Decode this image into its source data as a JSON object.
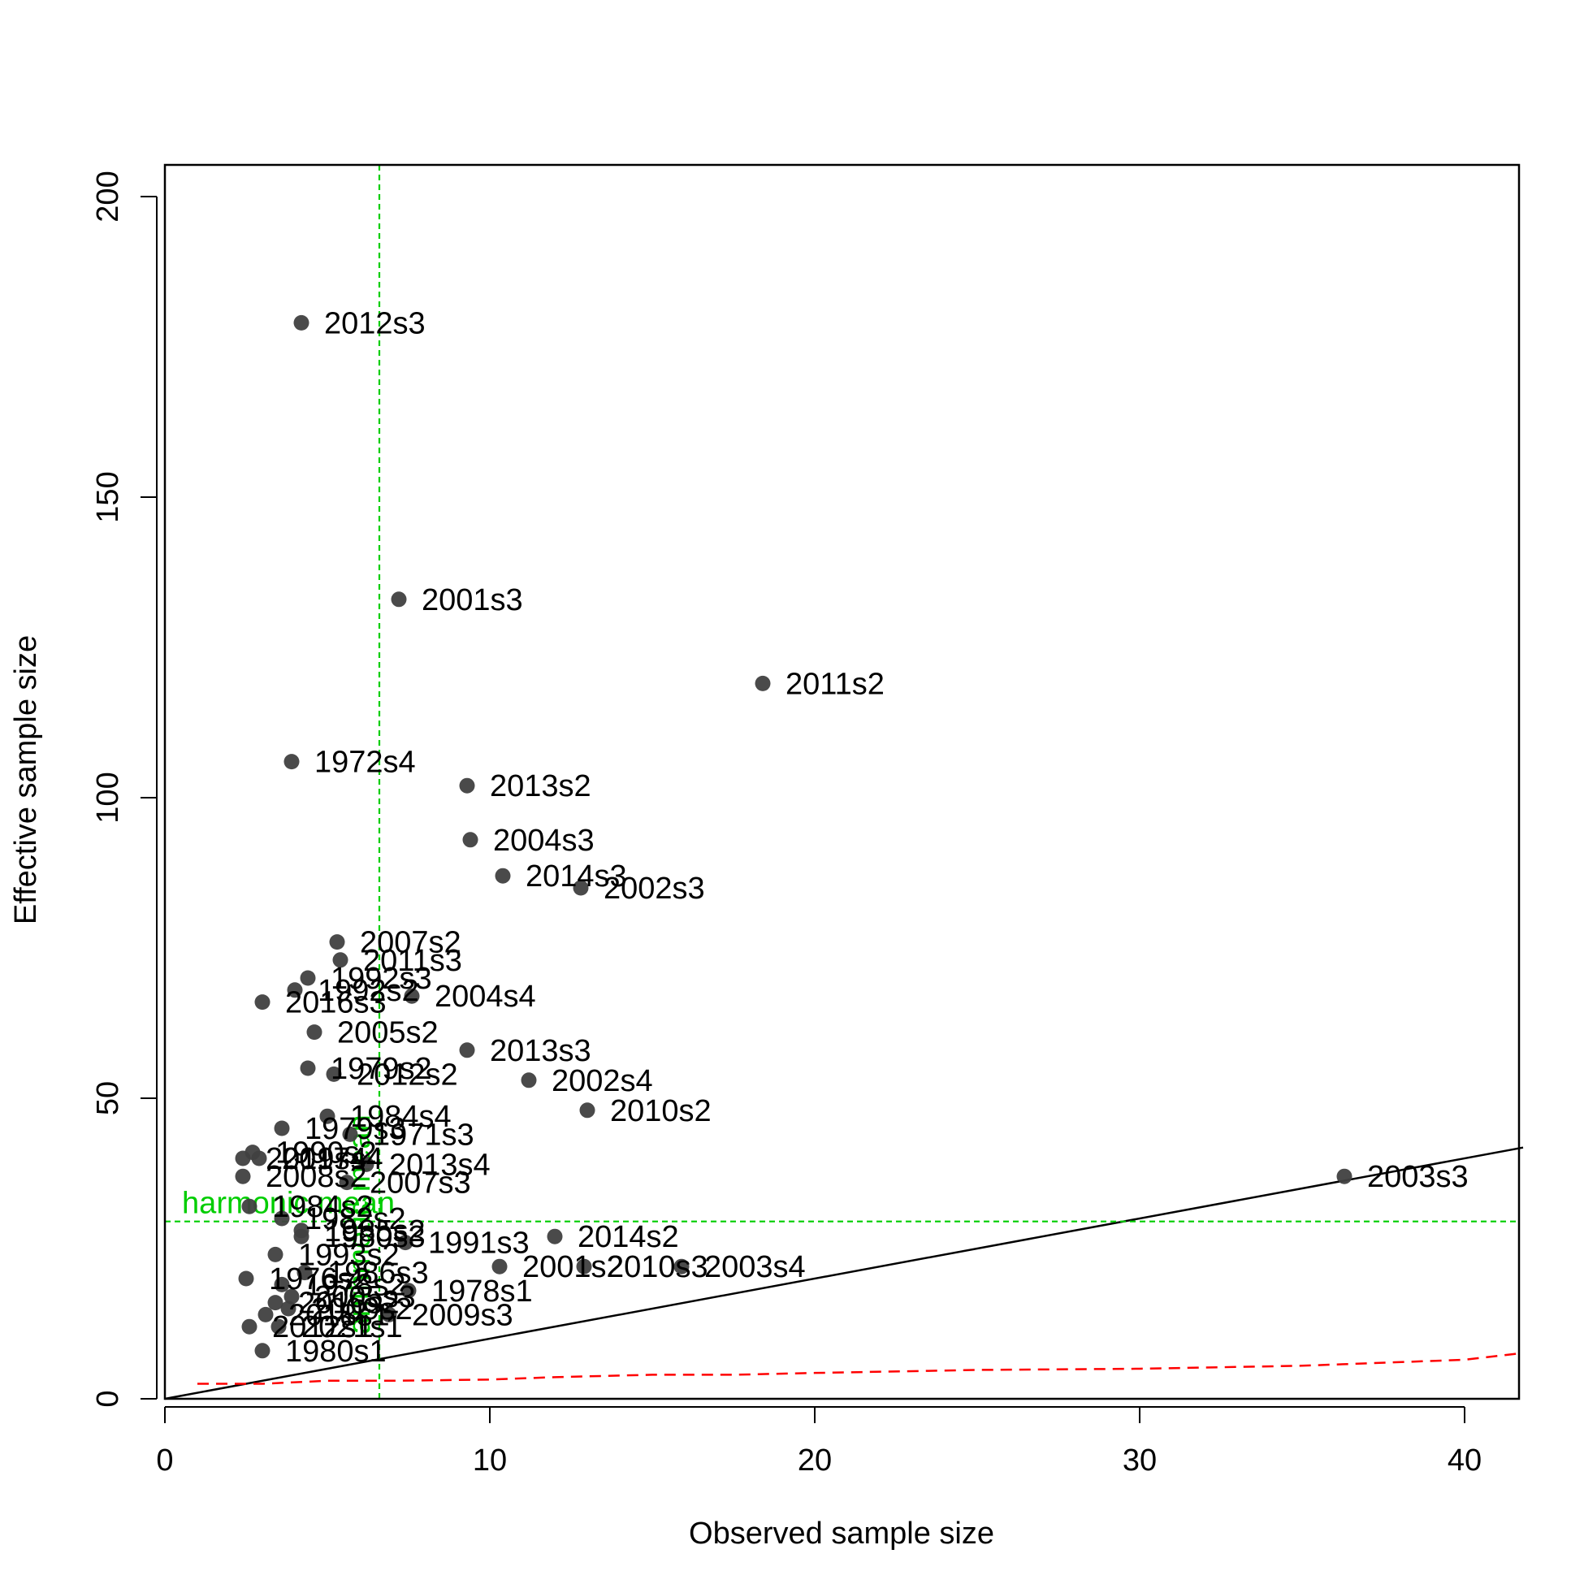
{
  "chart_data": {
    "type": "scatter",
    "title": "",
    "xlabel": "Observed sample size",
    "ylabel": "Effective sample size",
    "xlim": [
      0,
      41.8
    ],
    "ylim": [
      0,
      205
    ],
    "xticks": [
      "0",
      "10",
      "20",
      "30",
      "40"
    ],
    "yticks": [
      "0",
      "50",
      "100",
      "150",
      "200"
    ],
    "grid": false,
    "point_color": "#404040",
    "points": [
      {
        "x": 4.2,
        "y": 179,
        "label": "2012s3"
      },
      {
        "x": 7.2,
        "y": 133,
        "label": "2001s3"
      },
      {
        "x": 18.4,
        "y": 119,
        "label": "2011s2"
      },
      {
        "x": 3.9,
        "y": 106,
        "label": "1972s4"
      },
      {
        "x": 9.3,
        "y": 102,
        "label": "2013s2"
      },
      {
        "x": 9.4,
        "y": 93,
        "label": "2004s3"
      },
      {
        "x": 10.4,
        "y": 87,
        "label": "2014s3"
      },
      {
        "x": 12.8,
        "y": 85,
        "label": "2002s3"
      },
      {
        "x": 5.3,
        "y": 76,
        "label": "2007s2"
      },
      {
        "x": 5.4,
        "y": 73,
        "label": "2011s3"
      },
      {
        "x": 4.4,
        "y": 70,
        "label": "1992s3"
      },
      {
        "x": 4.0,
        "y": 68,
        "label": "1992s2"
      },
      {
        "x": 7.6,
        "y": 67,
        "label": "2004s4"
      },
      {
        "x": 3.0,
        "y": 66,
        "label": "2016s3"
      },
      {
        "x": 4.6,
        "y": 61,
        "label": "2005s2"
      },
      {
        "x": 9.3,
        "y": 58,
        "label": "2013s3"
      },
      {
        "x": 4.4,
        "y": 55,
        "label": "1979s2"
      },
      {
        "x": 5.2,
        "y": 54,
        "label": "2012s2"
      },
      {
        "x": 11.2,
        "y": 53,
        "label": "2002s4"
      },
      {
        "x": 13.0,
        "y": 48,
        "label": "2010s2"
      },
      {
        "x": 5.0,
        "y": 47,
        "label": "1984s4"
      },
      {
        "x": 3.6,
        "y": 45,
        "label": "1979s3"
      },
      {
        "x": 5.7,
        "y": 44,
        "label": "1971s3"
      },
      {
        "x": 2.7,
        "y": 41,
        "label": "1990s2"
      },
      {
        "x": 2.4,
        "y": 40,
        "label": "2019s4"
      },
      {
        "x": 2.9,
        "y": 40,
        "label": "2017s4"
      },
      {
        "x": 6.2,
        "y": 39,
        "label": "2013s4"
      },
      {
        "x": 2.4,
        "y": 37,
        "label": "2008s2"
      },
      {
        "x": 5.6,
        "y": 36,
        "label": "2007s3"
      },
      {
        "x": 36.3,
        "y": 37,
        "label": "2003s3"
      },
      {
        "x": 2.6,
        "y": 32,
        "label": "1984s2"
      },
      {
        "x": 3.6,
        "y": 30,
        "label": "1982s2"
      },
      {
        "x": 4.2,
        "y": 28,
        "label": "1985s2"
      },
      {
        "x": 12.0,
        "y": 27,
        "label": "2014s2"
      },
      {
        "x": 4.2,
        "y": 27,
        "label": "1980s3"
      },
      {
        "x": 7.4,
        "y": 26,
        "label": "1991s3"
      },
      {
        "x": 3.4,
        "y": 24,
        "label": "1993s2"
      },
      {
        "x": 10.3,
        "y": 22,
        "label": "2001s2"
      },
      {
        "x": 12.9,
        "y": 22,
        "label": "2010s3"
      },
      {
        "x": 15.9,
        "y": 22,
        "label": "2003s4"
      },
      {
        "x": 2.5,
        "y": 20,
        "label": "1976s2"
      },
      {
        "x": 4.3,
        "y": 21,
        "label": "1986s3"
      },
      {
        "x": 3.6,
        "y": 19,
        "label": "1978s2"
      },
      {
        "x": 7.5,
        "y": 18,
        "label": "1978s1"
      },
      {
        "x": 3.9,
        "y": 17,
        "label": "2005s3"
      },
      {
        "x": 3.4,
        "y": 16,
        "label": "2016s2"
      },
      {
        "x": 3.8,
        "y": 15,
        "label": "2009s2"
      },
      {
        "x": 6.9,
        "y": 14,
        "label": "2009s3"
      },
      {
        "x": 3.1,
        "y": 14,
        "label": "2018s1"
      },
      {
        "x": 2.6,
        "y": 12,
        "label": "2012s1"
      },
      {
        "x": 3.5,
        "y": 12,
        "label": "2021s1"
      },
      {
        "x": 3.0,
        "y": 8,
        "label": "1980s1"
      }
    ],
    "reference_lines": {
      "identity": {
        "slope": 1,
        "color": "#000000"
      },
      "arithmetic_mean": {
        "x": 6.6,
        "label": "arithmetic mean",
        "color": "#00CD00"
      },
      "harmonic_mean": {
        "y": 29.5,
        "label": "harmonic mean",
        "color": "#00CD00"
      },
      "red_dashed": {
        "color": "#FF0000",
        "x": [
          1.0,
          3.0,
          5.0,
          7.0,
          10.0,
          12.0,
          15.0,
          17.5,
          20.0,
          25.0,
          30.0,
          35.0,
          40.0,
          41.6
        ],
        "y": [
          2.5,
          2.5,
          3.0,
          3.0,
          3.2,
          3.6,
          4.0,
          4.0,
          4.3,
          4.8,
          5.0,
          5.5,
          6.5,
          7.5
        ]
      }
    }
  }
}
